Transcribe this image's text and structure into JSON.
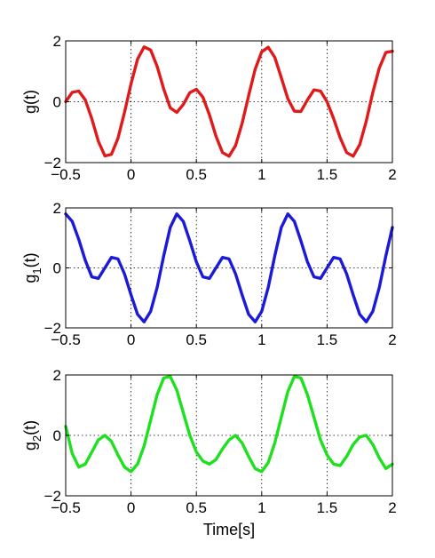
{
  "chart_data": [
    {
      "type": "line",
      "ylabel_base": "g",
      "ylabel_sub": "",
      "ylabel_tail": "(t)",
      "xlabel": "",
      "xlim": [
        -0.5,
        2
      ],
      "ylim": [
        -2,
        2
      ],
      "xticks": [
        -0.5,
        0,
        0.5,
        1,
        1.5,
        2
      ],
      "yticks": [
        -2,
        0,
        2
      ],
      "xtick_labels": [
        "−0.5",
        "0",
        "0.5",
        "1",
        "1.5",
        "2"
      ],
      "ytick_labels": [
        "−2",
        "0",
        "2"
      ],
      "grid": true,
      "color": "#e01a1a",
      "series": [
        {
          "x": [
            -0.5,
            -0.45,
            -0.4,
            -0.35,
            -0.3,
            -0.25,
            -0.2,
            -0.15,
            -0.1,
            -0.05,
            0,
            0.05,
            0.1,
            0.15,
            0.2,
            0.25,
            0.3,
            0.35,
            0.4,
            0.45,
            0.5,
            0.55,
            0.6,
            0.65,
            0.7,
            0.75,
            0.8,
            0.85,
            0.9,
            0.95,
            1,
            1.05,
            1.1,
            1.15,
            1.2,
            1.25,
            1.3,
            1.35,
            1.4,
            1.45,
            1.5,
            1.55,
            1.6,
            1.65,
            1.7,
            1.75,
            1.8,
            1.85,
            1.9,
            1.95,
            2
          ],
          "y": [
            0.0,
            0.31,
            0.35,
            0.06,
            -0.56,
            -1.3,
            -1.78,
            -1.73,
            -1.2,
            -0.35,
            0.59,
            1.4,
            1.8,
            1.7,
            1.16,
            0.42,
            -0.2,
            -0.35,
            -0.09,
            0.3,
            0.41,
            0.15,
            -0.43,
            -1.13,
            -1.67,
            -1.79,
            -1.44,
            -0.71,
            0.2,
            1.07,
            1.64,
            1.79,
            1.46,
            0.79,
            0.1,
            -0.31,
            -0.32,
            0.06,
            0.39,
            0.35,
            0.0,
            -0.55,
            -1.18,
            -1.67,
            -1.79,
            -1.41,
            -0.64,
            0.3,
            1.11,
            1.62,
            1.66
          ]
        }
      ]
    },
    {
      "type": "line",
      "ylabel_base": "g",
      "ylabel_sub": "1",
      "ylabel_tail": "(t)",
      "xlabel": "",
      "xlim": [
        -0.5,
        2
      ],
      "ylim": [
        -2,
        2
      ],
      "xticks": [
        -0.5,
        0,
        0.5,
        1,
        1.5,
        2
      ],
      "yticks": [
        -2,
        0,
        2
      ],
      "xtick_labels": [
        "−0.5",
        "0",
        "0.5",
        "1",
        "1.5",
        "2"
      ],
      "ytick_labels": [
        "−2",
        "0",
        "2"
      ],
      "grid": true,
      "color": "#1a1ad8",
      "series": [
        {
          "x": [
            -0.5,
            -0.45,
            -0.4,
            -0.35,
            -0.3,
            -0.25,
            -0.2,
            -0.15,
            -0.1,
            -0.05,
            0,
            0.05,
            0.1,
            0.15,
            0.2,
            0.25,
            0.3,
            0.35,
            0.4,
            0.45,
            0.5,
            0.55,
            0.6,
            0.65,
            0.7,
            0.75,
            0.8,
            0.85,
            0.9,
            0.95,
            1,
            1.05,
            1.1,
            1.15,
            1.2,
            1.25,
            1.3,
            1.35,
            1.4,
            1.45,
            1.5,
            1.55,
            1.6,
            1.65,
            1.7,
            1.75,
            1.8,
            1.85,
            1.9,
            1.95,
            2
          ],
          "y": [
            1.8,
            1.55,
            0.95,
            0.25,
            -0.3,
            -0.35,
            0.0,
            0.35,
            0.3,
            -0.2,
            -0.9,
            -1.55,
            -1.8,
            -1.45,
            -0.65,
            0.4,
            1.35,
            1.8,
            1.55,
            0.9,
            0.2,
            -0.3,
            -0.35,
            0.0,
            0.35,
            0.3,
            -0.2,
            -0.9,
            -1.55,
            -1.8,
            -1.45,
            -0.65,
            0.4,
            1.35,
            1.8,
            1.55,
            0.9,
            0.2,
            -0.3,
            -0.35,
            0.0,
            0.35,
            0.3,
            -0.2,
            -0.9,
            -1.55,
            -1.8,
            -1.45,
            -0.65,
            0.4,
            1.35
          ]
        }
      ]
    },
    {
      "type": "line",
      "ylabel_base": "g",
      "ylabel_sub": "2",
      "ylabel_tail": "(t)",
      "xlabel": "Time[s]",
      "xlim": [
        -0.5,
        2
      ],
      "ylim": [
        -2,
        2
      ],
      "xticks": [
        -0.5,
        0,
        0.5,
        1,
        1.5,
        2
      ],
      "yticks": [
        -2,
        0,
        2
      ],
      "xtick_labels": [
        "−0.5",
        "0",
        "0.5",
        "1",
        "1.5",
        "2"
      ],
      "ytick_labels": [
        "−2",
        "0",
        "2"
      ],
      "grid": true,
      "color": "#1fe01f",
      "series": [
        {
          "x": [
            -0.5,
            -0.45,
            -0.4,
            -0.35,
            -0.3,
            -0.25,
            -0.2,
            -0.15,
            -0.1,
            -0.05,
            0,
            0.05,
            0.1,
            0.15,
            0.2,
            0.25,
            0.3,
            0.35,
            0.4,
            0.45,
            0.5,
            0.55,
            0.6,
            0.65,
            0.7,
            0.75,
            0.8,
            0.85,
            0.9,
            0.95,
            1,
            1.05,
            1.1,
            1.15,
            1.2,
            1.25,
            1.3,
            1.35,
            1.4,
            1.45,
            1.5,
            1.55,
            1.6,
            1.65,
            1.7,
            1.75,
            1.8,
            1.85,
            1.9,
            1.95,
            2
          ],
          "y": [
            0.3,
            -0.6,
            -1.05,
            -0.95,
            -0.55,
            -0.15,
            0.0,
            -0.2,
            -0.65,
            -1.05,
            -1.2,
            -0.95,
            -0.35,
            0.5,
            1.35,
            1.9,
            1.95,
            1.5,
            0.75,
            0.0,
            -0.55,
            -0.85,
            -0.95,
            -0.8,
            -0.45,
            -0.15,
            0.0,
            -0.25,
            -0.7,
            -1.1,
            -1.2,
            -0.9,
            -0.25,
            0.6,
            1.45,
            1.95,
            1.9,
            1.35,
            0.6,
            -0.15,
            -0.65,
            -0.95,
            -1.0,
            -0.7,
            -0.3,
            -0.05,
            0.0,
            -0.3,
            -0.75,
            -1.1,
            -0.95
          ]
        }
      ]
    }
  ]
}
